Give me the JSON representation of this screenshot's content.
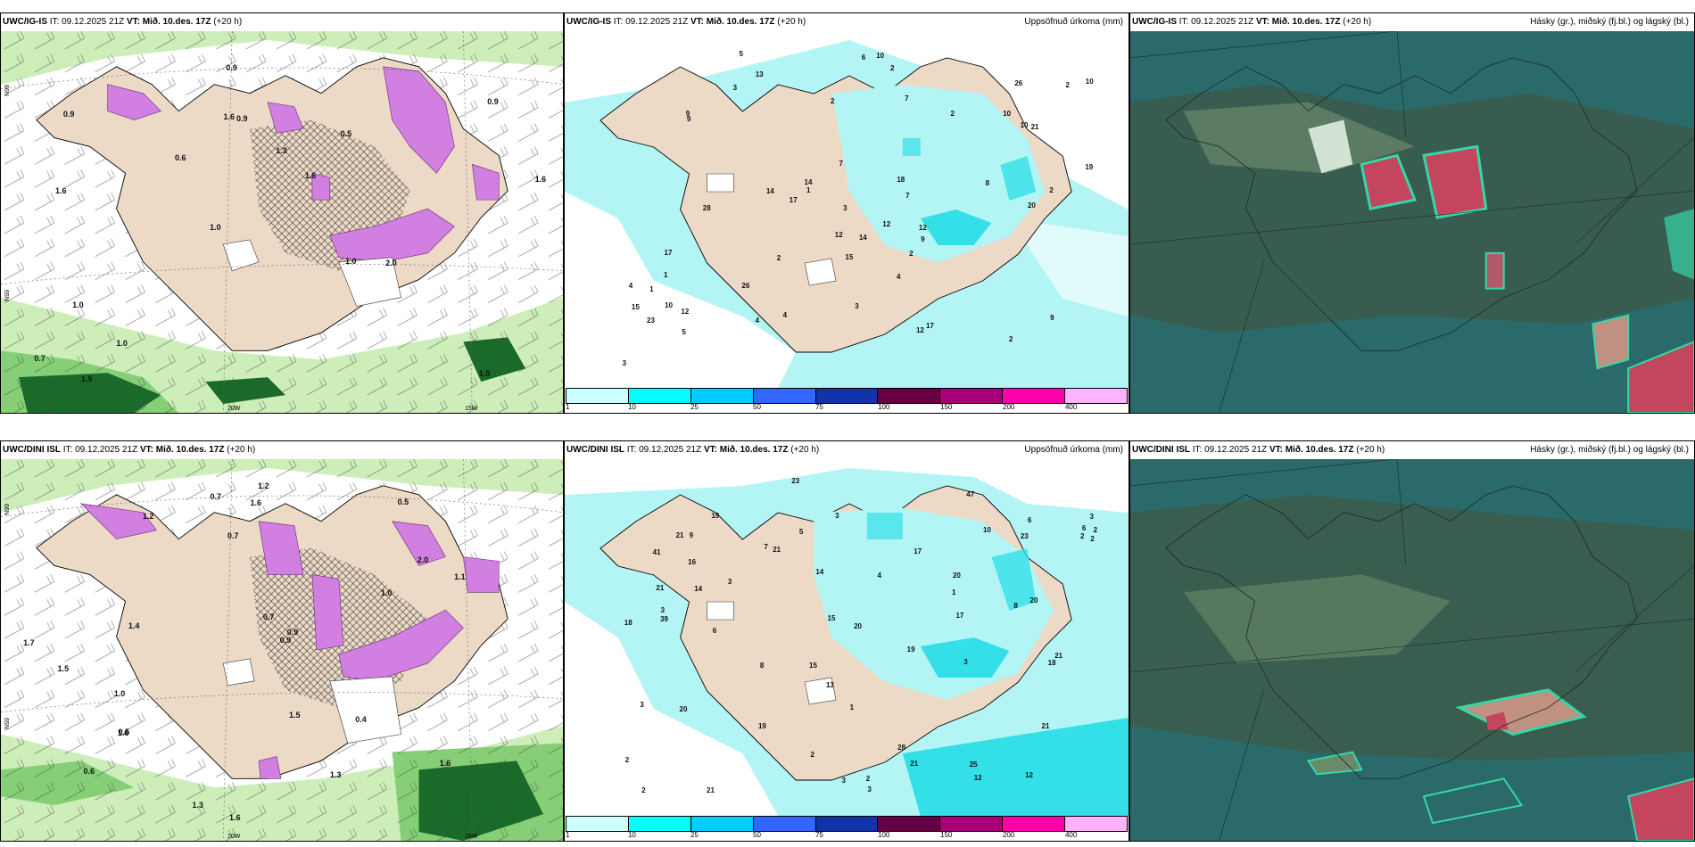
{
  "rows": [
    {
      "model": "UWC/IG-IS",
      "it_label": "IT:",
      "it_value": "09.12.2025 21Z",
      "vt_label": "VT:",
      "vt_value": "Mið. 10.des. 17Z",
      "lead": "(+20 h)",
      "map_ticks": {
        "lon_left": "20W",
        "lon_right": "15W",
        "lat_left": "66N",
        "lat_mid": "65N",
        "lat_low": "64N"
      },
      "left_values": [
        "1.0",
        "1.6",
        "0.9",
        "1.0",
        "0.5",
        "1.5",
        "1.6",
        "1.3",
        "1.0",
        "0.6",
        "0.7",
        "1.0",
        "0.9",
        "1.6",
        "2.0",
        "0.9",
        "0.9",
        "1.6",
        "1.0"
      ],
      "precip_numbers": [
        "3",
        "2",
        "1",
        "2",
        "1",
        "9",
        "7",
        "4",
        "2",
        "2",
        "10",
        "13",
        "9",
        "10",
        "4",
        "2",
        "5",
        "10",
        "10",
        "12",
        "17",
        "14",
        "8",
        "7",
        "12",
        "9",
        "26",
        "23",
        "17",
        "26",
        "12",
        "15",
        "3",
        "5",
        "4",
        "7",
        "14",
        "3",
        "3",
        "9",
        "10",
        "2",
        "19",
        "28",
        "20",
        "21",
        "18",
        "15",
        "12",
        "17",
        "14",
        "2",
        "2",
        "4",
        "12",
        "1",
        "6"
      ]
    },
    {
      "model": "UWC/DINI ISL",
      "it_label": "IT:",
      "it_value": "09.12.2025 21Z",
      "vt_label": "VT:",
      "vt_value": "Mið. 10.des. 17Z",
      "lead": "(+20 h)",
      "map_ticks": {
        "lon_left": "20W",
        "lon_right": "15W",
        "lat_left": "66N",
        "lat_mid": "65N",
        "lat_low": "64N"
      },
      "left_values": [
        "0.6",
        "0.5",
        "1.2",
        "2.0",
        "1.5",
        "1.4",
        "1.0",
        "0.5",
        "1.1",
        "1.0",
        "1.5",
        "1.2",
        "0.4",
        "0.9",
        "1.6",
        "0.7",
        "1.6",
        "1.7",
        "1.6",
        "1.3",
        "1.3",
        "1.6",
        "0.7",
        "0.9",
        "0.7"
      ],
      "precip_numbers": [
        "3",
        "3",
        "2",
        "2",
        "3",
        "3",
        "17",
        "21",
        "13",
        "9",
        "6",
        "2",
        "3",
        "3",
        "16",
        "20",
        "19",
        "21",
        "20",
        "12",
        "8",
        "7",
        "5",
        "3",
        "18",
        "21",
        "20",
        "14",
        "14",
        "19",
        "41",
        "28",
        "25",
        "39",
        "6",
        "6",
        "4",
        "18",
        "8",
        "10",
        "17",
        "15",
        "21",
        "47",
        "20",
        "23",
        "19",
        "21",
        "23",
        "12",
        "2",
        "2",
        "2",
        "3",
        "2",
        "21",
        "15",
        "21",
        "1",
        "1"
      ]
    }
  ],
  "precip_title": "Uppsöfnuð úrkoma (mm)",
  "cloud_title": "Hásky (gr.), miðský (fj.bl.) og lágský (bl.)",
  "colorbar": {
    "colors": [
      "#ccffff",
      "#00ffff",
      "#00ccff",
      "#3366ff",
      "#1133aa",
      "#660044",
      "#aa0077",
      "#ff00aa",
      "#ffb3ff"
    ],
    "ticks": [
      "1",
      "10",
      "25",
      "50",
      "75",
      "100",
      "150",
      "200",
      "400"
    ]
  },
  "colors": {
    "land": "#ecd9c6",
    "sea": "#ffffff",
    "green_light": "#cdeeb9",
    "green_mid": "#86cf76",
    "green_dark": "#1a6b2a",
    "violet": "#d17fe0",
    "cyan_light": "#b3f5f5",
    "cyan": "#33e0e8",
    "cloud_base": "#2a6a6a",
    "cloud_land": "#3c5a4a",
    "cloud_hi": "#37d6a6",
    "cloud_red": "#c4455e"
  }
}
